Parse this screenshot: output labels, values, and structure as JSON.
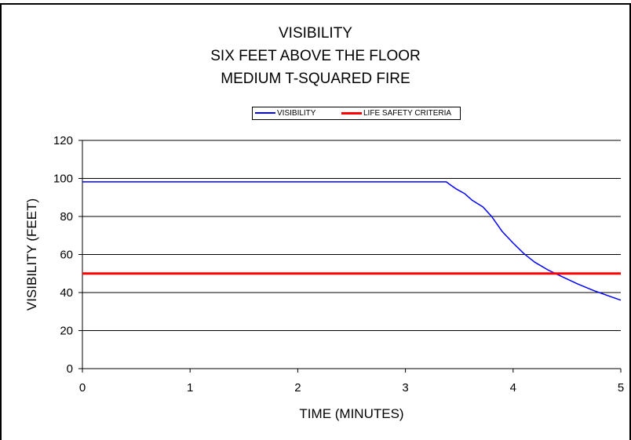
{
  "chart_data": {
    "type": "line",
    "title": [
      "VISIBILITY",
      "SIX FEET ABOVE THE FLOOR",
      "MEDIUM T-SQUARED FIRE"
    ],
    "xlabel": "TIME (MINUTES)",
    "ylabel": "VISIBILITY (FEET)",
    "xlim": [
      0,
      5
    ],
    "ylim": [
      0,
      120
    ],
    "xticks": [
      0,
      1,
      2,
      3,
      4,
      5
    ],
    "yticks": [
      0,
      20,
      40,
      60,
      80,
      100,
      120
    ],
    "grid": "horizontal",
    "legend": "top-center",
    "series": [
      {
        "name": "VISIBILITY",
        "color": "#0000ff",
        "x": [
          0,
          3.38,
          3.42,
          3.47,
          3.55,
          3.62,
          3.72,
          3.8,
          3.9,
          4.0,
          4.1,
          4.2,
          4.32,
          4.45,
          4.6,
          4.75,
          4.9,
          5.0
        ],
        "y": [
          98.2,
          98.2,
          96.5,
          94.5,
          92.0,
          88.5,
          85.0,
          80.0,
          72.0,
          66.0,
          60.5,
          56.0,
          52.0,
          48.5,
          44.5,
          41.0,
          38.0,
          36.0
        ]
      },
      {
        "name": "LIFE SAFETY CRITERIA",
        "color": "#ff0000",
        "x": [
          0,
          5
        ],
        "y": [
          50,
          50
        ]
      }
    ]
  }
}
